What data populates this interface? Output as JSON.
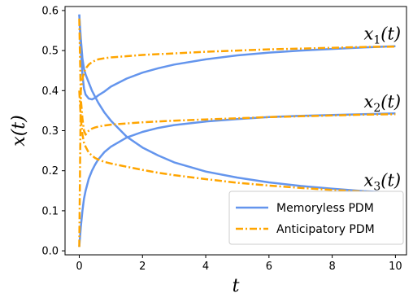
{
  "chart_data": {
    "type": "line",
    "xlabel": "t",
    "ylabel": "x(t)",
    "xlim": [
      -0.45,
      10.35
    ],
    "ylim": [
      -0.01,
      0.61
    ],
    "xticks": [
      0,
      2,
      4,
      6,
      8,
      10
    ],
    "xtick_labels": [
      "0",
      "2",
      "4",
      "6",
      "8",
      "10"
    ],
    "yticks": [
      0.0,
      0.1,
      0.2,
      0.3,
      0.4,
      0.5,
      0.6
    ],
    "ytick_labels": [
      "0.0",
      "0.1",
      "0.2",
      "0.3",
      "0.4",
      "0.5",
      "0.6"
    ],
    "grid": false,
    "legend_position": "lower-right",
    "x": [
      0,
      0.05,
      0.1,
      0.15,
      0.2,
      0.3,
      0.4,
      0.5,
      0.6,
      0.8,
      1,
      1.5,
      2,
      2.5,
      3,
      4,
      5,
      6,
      7,
      8,
      9,
      10
    ],
    "series": [
      {
        "name": "Memoryless PDM",
        "style": "solid",
        "color": "#6495ED",
        "curves": {
          "x1": [
            0.59,
            0.5,
            0.44,
            0.405,
            0.39,
            0.38,
            0.378,
            0.382,
            0.388,
            0.398,
            0.41,
            0.43,
            0.445,
            0.456,
            0.465,
            0.478,
            0.488,
            0.495,
            0.5,
            0.504,
            0.508,
            0.511
          ],
          "x2": [
            0.01,
            0.06,
            0.1,
            0.13,
            0.15,
            0.18,
            0.2,
            0.215,
            0.228,
            0.247,
            0.26,
            0.283,
            0.297,
            0.307,
            0.314,
            0.323,
            0.329,
            0.334,
            0.337,
            0.339,
            0.341,
            0.343
          ],
          "x3": [
            0.59,
            0.53,
            0.48,
            0.455,
            0.44,
            0.42,
            0.4,
            0.385,
            0.37,
            0.345,
            0.325,
            0.285,
            0.258,
            0.238,
            0.221,
            0.198,
            0.183,
            0.171,
            0.162,
            0.155,
            0.149,
            0.145
          ]
        }
      },
      {
        "name": "Anticipatory PDM",
        "style": "dashdot",
        "color": "#FFA500",
        "curves": {
          "x1": [
            0.01,
            0.4,
            0.43,
            0.445,
            0.455,
            0.465,
            0.471,
            0.475,
            0.478,
            0.481,
            0.483,
            0.486,
            0.489,
            0.491,
            0.493,
            0.497,
            0.5,
            0.503,
            0.505,
            0.507,
            0.509,
            0.51
          ],
          "x2": [
            0.58,
            0.38,
            0.33,
            0.3,
            0.29,
            0.3,
            0.305,
            0.308,
            0.31,
            0.313,
            0.315,
            0.318,
            0.321,
            0.323,
            0.325,
            0.328,
            0.331,
            0.334,
            0.336,
            0.338,
            0.34,
            0.341
          ],
          "x3": [
            0.4,
            0.33,
            0.29,
            0.27,
            0.26,
            0.245,
            0.238,
            0.232,
            0.228,
            0.222,
            0.218,
            0.21,
            0.202,
            0.195,
            0.189,
            0.179,
            0.17,
            0.163,
            0.157,
            0.152,
            0.148,
            0.144
          ]
        }
      }
    ],
    "annotations": [
      {
        "base": "x",
        "sub": "1",
        "suffix": "(t)",
        "x": 9.0,
        "y": 0.528
      },
      {
        "base": "x",
        "sub": "2",
        "suffix": "(t)",
        "x": 9.0,
        "y": 0.358
      },
      {
        "base": "x",
        "sub": "3",
        "suffix": "(t)",
        "x": 9.0,
        "y": 0.162
      }
    ]
  }
}
